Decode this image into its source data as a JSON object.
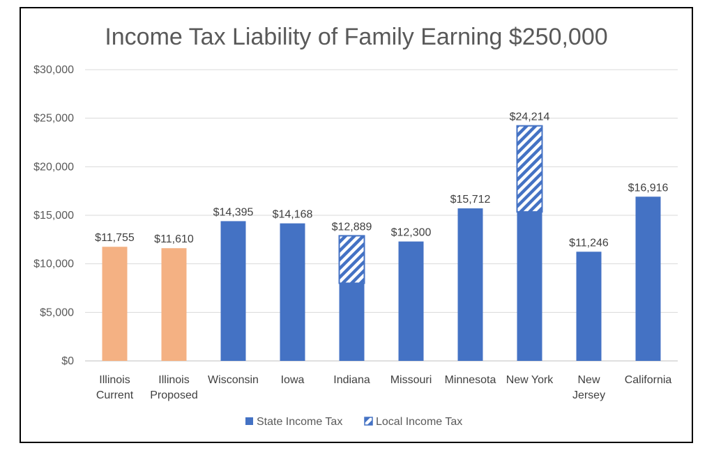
{
  "chart_data": {
    "type": "bar",
    "stacked": true,
    "title": "Income Tax Liability of Family Earning $250,000",
    "xlabel": "",
    "ylabel": "",
    "ylim": [
      0,
      30000
    ],
    "y_ticks": [
      "$0",
      "$5,000",
      "$10,000",
      "$15,000",
      "$20,000",
      "$25,000",
      "$30,000"
    ],
    "categories": [
      [
        "Illinois",
        "Current"
      ],
      [
        "Illinois",
        "Proposed"
      ],
      [
        "Wisconsin"
      ],
      [
        "Iowa"
      ],
      [
        "Indiana"
      ],
      [
        "Missouri"
      ],
      [
        "Minnesota"
      ],
      [
        "New York"
      ],
      [
        "New",
        "Jersey"
      ],
      [
        "California"
      ]
    ],
    "series": [
      {
        "name": "State Income Tax",
        "values": [
          11755,
          11610,
          14395,
          14168,
          8000,
          12300,
          15712,
          15350,
          11246,
          16916
        ]
      },
      {
        "name": "Local Income Tax",
        "values": [
          0,
          0,
          0,
          0,
          4889,
          0,
          0,
          8864,
          0,
          0
        ]
      }
    ],
    "bar_colors": [
      "#F4B183",
      "#F4B183",
      "#4472C4",
      "#4472C4",
      "#4472C4",
      "#4472C4",
      "#4472C4",
      "#4472C4",
      "#4472C4",
      "#4472C4"
    ],
    "data_labels": [
      "$11,755",
      "$11,610",
      "$14,395",
      "$14,168",
      "$12,889",
      "$12,300",
      "$15,712",
      "$24,214",
      "$11,246",
      "$16,916"
    ],
    "series_color": "#4472C4",
    "highlight_color": "#F4B183",
    "grid": true,
    "legend_position": "bottom"
  }
}
